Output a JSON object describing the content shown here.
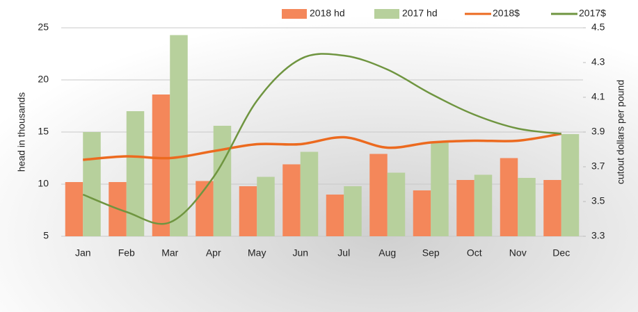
{
  "chart_data": {
    "type": "bar-line",
    "categories": [
      "Jan",
      "Feb",
      "Mar",
      "Apr",
      "May",
      "Jun",
      "Jul",
      "Aug",
      "Sep",
      "Oct",
      "Nov",
      "Dec"
    ],
    "series": [
      {
        "name": "2018 hd",
        "type": "bar",
        "color": "#f4875a",
        "values": [
          10.2,
          10.2,
          18.6,
          10.3,
          9.8,
          11.9,
          9.0,
          12.9,
          9.4,
          10.4,
          12.5,
          10.4
        ]
      },
      {
        "name": "2017 hd",
        "type": "bar",
        "color": "#b7d09c",
        "values": [
          15.0,
          17.0,
          24.3,
          15.6,
          10.7,
          13.1,
          9.8,
          11.1,
          14.0,
          10.9,
          10.6,
          14.8
        ]
      },
      {
        "name": "2018$",
        "type": "line",
        "axis": "y2",
        "color": "#ec6a1f",
        "values": [
          3.74,
          3.76,
          3.75,
          3.79,
          3.83,
          3.83,
          3.87,
          3.81,
          3.84,
          3.85,
          3.85,
          3.89
        ]
      },
      {
        "name": "2017$",
        "type": "line",
        "axis": "y2",
        "color": "#6f9540",
        "values": [
          3.54,
          3.44,
          3.38,
          3.64,
          4.08,
          4.32,
          4.34,
          4.26,
          4.12,
          4.0,
          3.92,
          3.89
        ]
      }
    ],
    "ylabel": "head in thousands",
    "y2label": "cutout dollars per pound",
    "ylim": [
      5,
      25
    ],
    "yticks": [
      5,
      10,
      15,
      20,
      25
    ],
    "y2lim": [
      3.3,
      4.5
    ],
    "y2ticks": [
      3.3,
      3.5,
      3.7,
      3.9,
      4.1,
      4.3,
      4.5
    ],
    "grid": true,
    "legend": "top"
  }
}
